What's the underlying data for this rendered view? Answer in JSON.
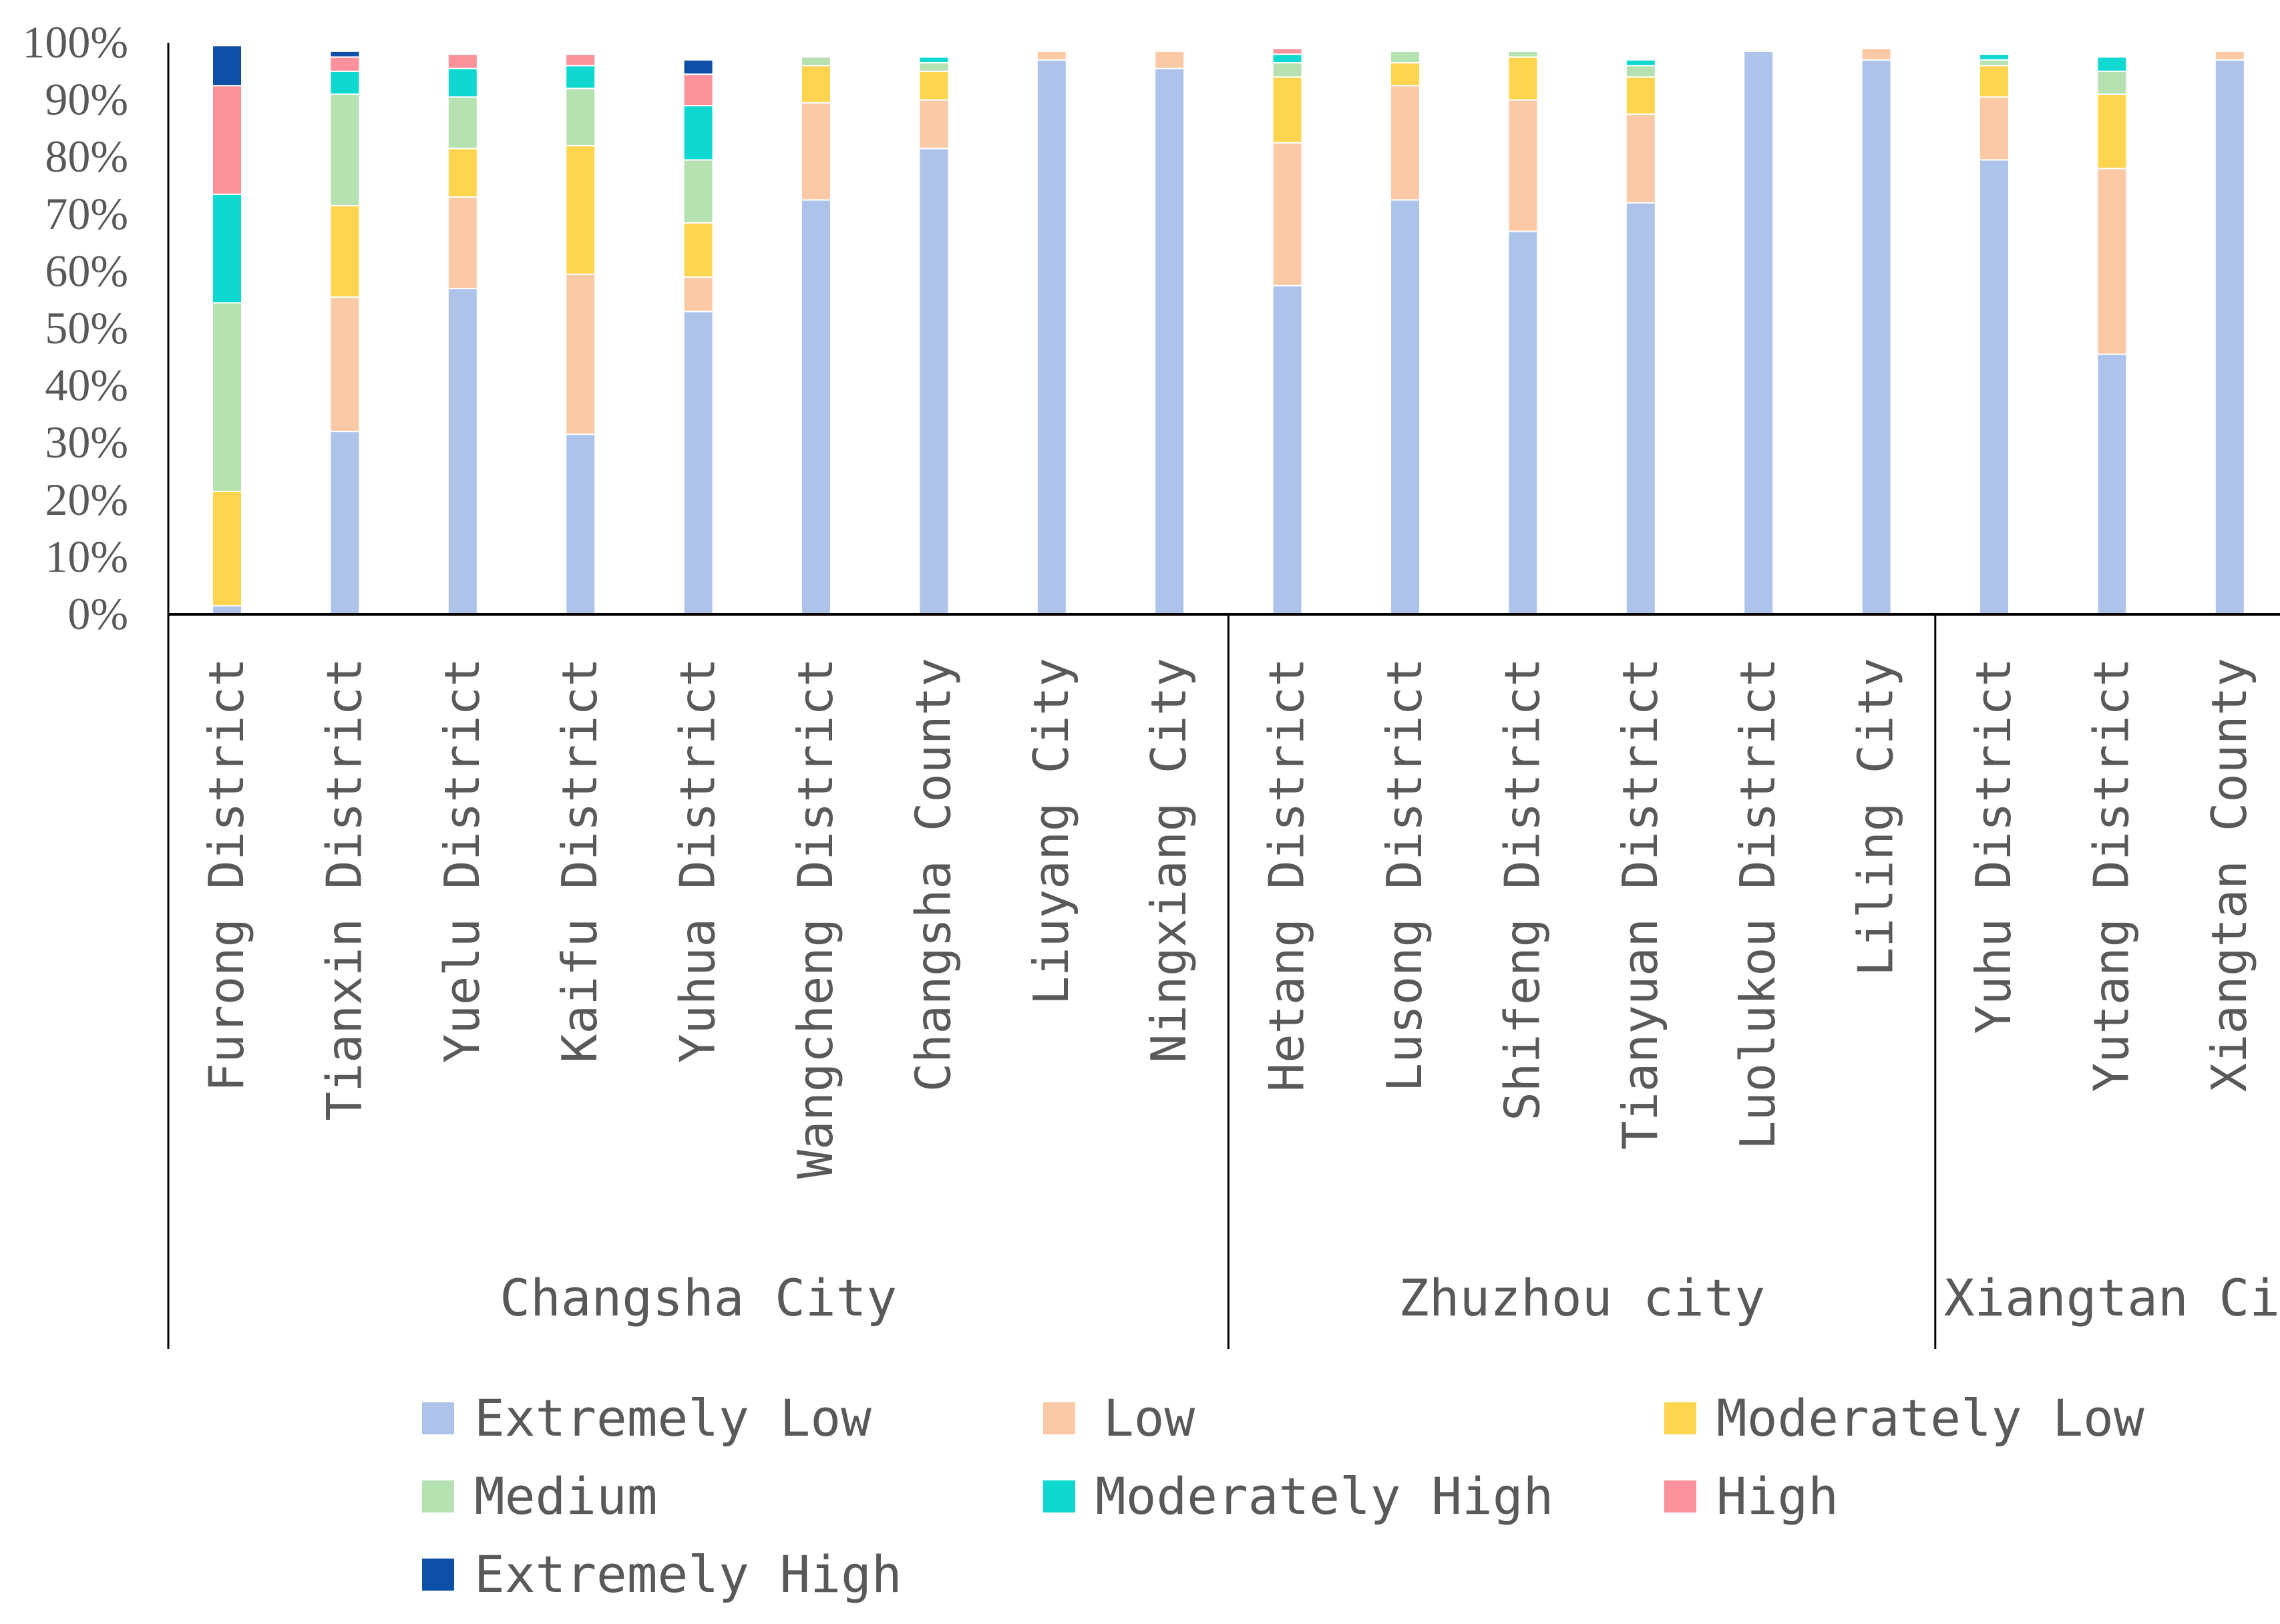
{
  "chart_data": {
    "type": "bar",
    "stacked": true,
    "title": "",
    "xlabel": "",
    "ylabel": "",
    "ylim": [
      0,
      100
    ],
    "y_ticks": [
      "0%",
      "10%",
      "20%",
      "30%",
      "40%",
      "50%",
      "60%",
      "70%",
      "80%",
      "90%",
      "100%"
    ],
    "grid": false,
    "legend_position": "bottom",
    "categories": [
      "Furong District",
      "Tianxin District",
      "Yuelu District",
      "Kaifu District",
      "Yuhua District",
      "Wangcheng District",
      "Changsha County",
      "Liuyang City",
      "Ningxiang City",
      "Hetang District",
      "Lusong District",
      "Shifeng District",
      "Tianyuan District",
      "Luolukou District",
      "Liling City",
      "Yuhu District",
      "Yutang District",
      "Xiangtan County"
    ],
    "groups": [
      {
        "name": "Changsha City",
        "count": 9
      },
      {
        "name": "Zhuzhou city",
        "count": 6
      },
      {
        "name": "Xiangtan Ci",
        "count": 3
      }
    ],
    "series": [
      {
        "name": "Extremely Low",
        "color": "#aec3ea",
        "values": [
          1.5,
          32,
          57,
          31.5,
          53,
          72.5,
          81.5,
          97,
          95.5,
          57.5,
          72.5,
          67,
          72,
          98.5,
          97,
          79.5,
          45.5,
          97
        ]
      },
      {
        "name": "Low",
        "color": "#fcc9a6",
        "values": [
          0,
          23.5,
          16,
          28,
          6,
          17,
          8.5,
          1.5,
          3,
          25,
          20,
          23,
          15.5,
          0,
          2,
          11,
          32.5,
          1.5
        ]
      },
      {
        "name": "Moderately Low",
        "color": "#ffd54f",
        "values": [
          20,
          16,
          8.5,
          22.5,
          9.5,
          6.5,
          5,
          0,
          0,
          11.5,
          4,
          7.5,
          6.5,
          0,
          0,
          5.5,
          13,
          0
        ]
      },
      {
        "name": "Medium",
        "color": "#b6e2b1",
        "values": [
          33,
          19.5,
          9,
          10,
          11,
          1.5,
          1.5,
          0,
          0,
          2.5,
          2,
          1,
          2,
          0,
          0,
          1,
          4,
          0
        ]
      },
      {
        "name": "Moderately High",
        "color": "#0fd8d0",
        "values": [
          19,
          4,
          5,
          4,
          9.5,
          0,
          1,
          0,
          0,
          1.5,
          0,
          0,
          1,
          0,
          0,
          1,
          2.5,
          0
        ]
      },
      {
        "name": "High",
        "color": "#fb919b",
        "values": [
          19,
          2.5,
          2.5,
          2,
          5.5,
          0,
          0,
          0,
          0,
          1,
          0,
          0,
          0,
          0,
          0,
          0,
          0,
          0
        ]
      },
      {
        "name": "Extremely High",
        "color": "#0d4fa6",
        "values": [
          7,
          1,
          0,
          0,
          2.5,
          0,
          0,
          0,
          0,
          0,
          0,
          0,
          0,
          0,
          0,
          0,
          0,
          0
        ]
      }
    ]
  }
}
